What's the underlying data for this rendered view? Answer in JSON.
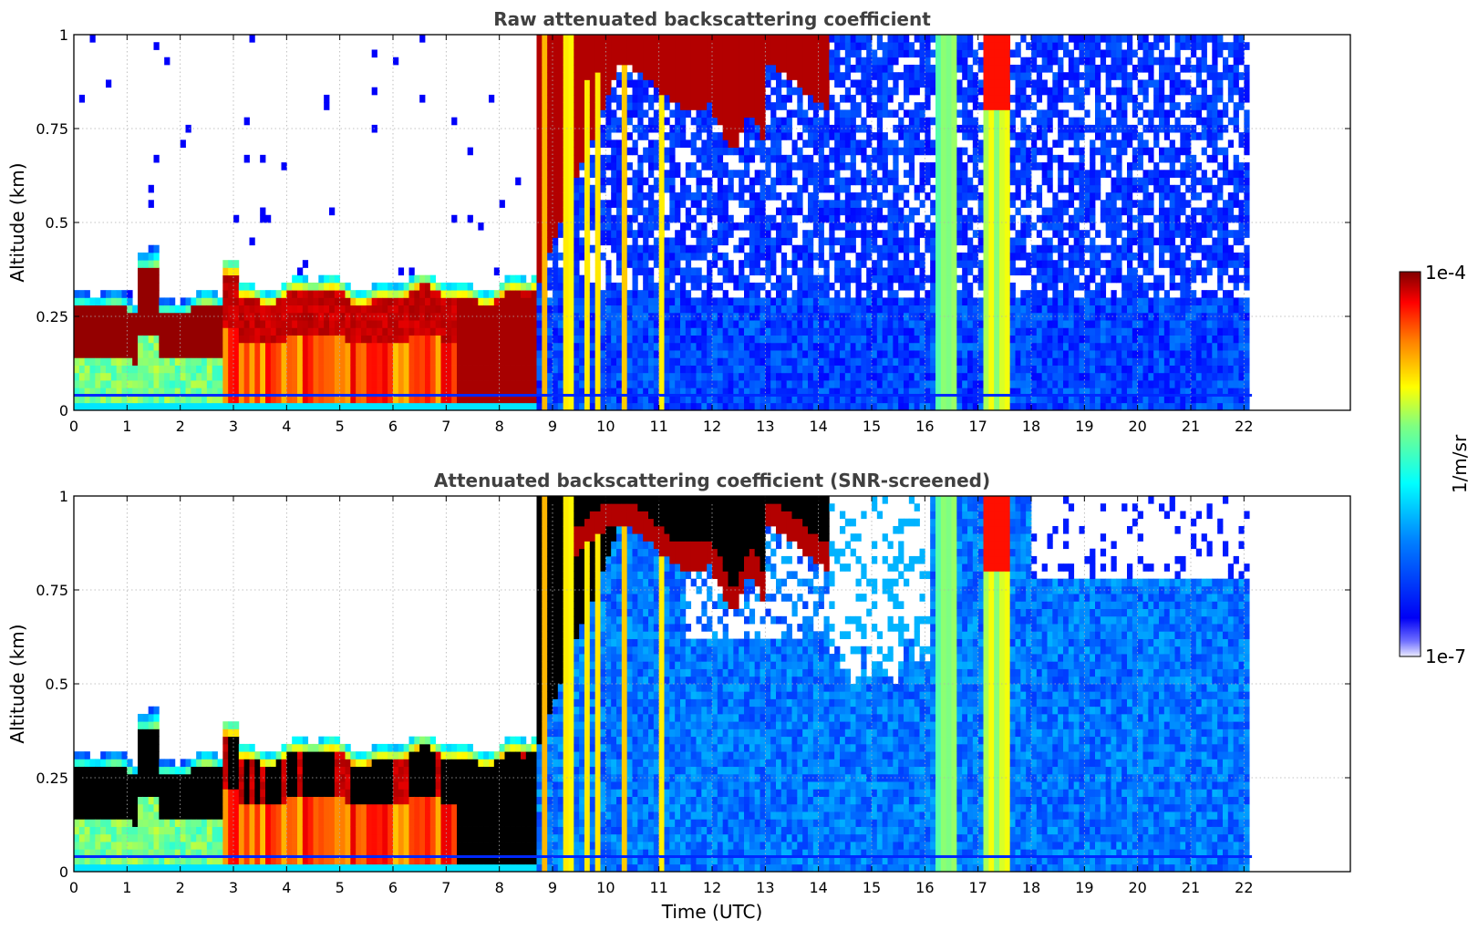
{
  "chart_data": [
    {
      "type": "heatmap",
      "title": "Raw attenuated backscattering coefficient",
      "ylabel": "Altitude (km)",
      "xlabel": "",
      "xlim": [
        0,
        24
      ],
      "ylim": [
        0,
        1
      ],
      "x_ticks": [
        0,
        1,
        2,
        3,
        4,
        5,
        6,
        7,
        8,
        9,
        10,
        11,
        12,
        13,
        14,
        15,
        16,
        17,
        18,
        19,
        20,
        21,
        22
      ],
      "y_ticks": [
        "0",
        "0.25",
        "0.5",
        "0.75",
        "1"
      ],
      "y_tick_values": [
        0,
        0.25,
        0.5,
        0.75,
        1
      ],
      "grid": true,
      "data_end_hour": 22.15,
      "screened": false
    },
    {
      "type": "heatmap",
      "title": "Attenuated backscattering coefficient (SNR-screened)",
      "ylabel": "Altitude (km)",
      "xlabel": "Time (UTC)",
      "xlim": [
        0,
        24
      ],
      "ylim": [
        0,
        1
      ],
      "x_ticks": [
        0,
        1,
        2,
        3,
        4,
        5,
        6,
        7,
        8,
        9,
        10,
        11,
        12,
        13,
        14,
        15,
        16,
        17,
        18,
        19,
        20,
        21,
        22
      ],
      "y_ticks": [
        "0",
        "0.25",
        "0.5",
        "0.75",
        "1"
      ],
      "y_tick_values": [
        0,
        0.25,
        0.5,
        0.75,
        1
      ],
      "grid": true,
      "data_end_hour": 22.15,
      "screened": true
    }
  ],
  "colorbar": {
    "max_label": "1e-4",
    "min_label": "1e-7",
    "unit_label": "1/m/sr",
    "colormap": "jet",
    "colors": [
      "#e8e8ff",
      "#0000ff",
      "#00a0ff",
      "#00ffff",
      "#ffff00",
      "#ff8000",
      "#ff0000",
      "#800000"
    ]
  }
}
